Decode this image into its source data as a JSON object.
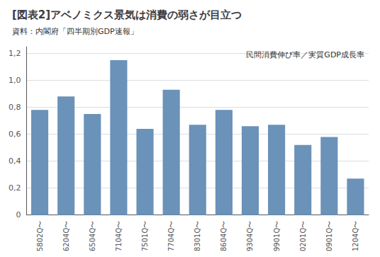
{
  "chart_data": {
    "type": "bar",
    "title": "[図表2]アベノミクス景気は消費の弱さが目立つ",
    "subtitle": "資料：内閣府「四半期別GDP速報」",
    "annotation": "民間消費伸び率／実質GDP成長率",
    "categories": [
      "5802Q〜",
      "6204Q〜",
      "6504Q〜",
      "7104Q〜",
      "7501Q〜",
      "7704Q〜",
      "8301Q〜",
      "8604Q〜",
      "9304Q〜",
      "9901Q〜",
      "0201Q〜",
      "0901Q〜",
      "1204Q〜"
    ],
    "values": [
      0.78,
      0.88,
      0.75,
      1.15,
      0.64,
      0.93,
      0.67,
      0.78,
      0.66,
      0.67,
      0.52,
      0.58,
      0.27
    ],
    "color": "#6b92b8",
    "ylim": [
      0,
      1.25
    ],
    "yticks": [
      0,
      {
        "value": 0.2,
        "label": "0,2"
      },
      {
        "value": 0.4,
        "label": "0,4"
      },
      {
        "value": 0.6,
        "label": "0,6"
      },
      {
        "value": 0.8,
        "label": "0,8"
      },
      {
        "value": 1.0,
        "label": "1,0"
      },
      {
        "value": 1.2,
        "label": "1,2"
      }
    ],
    "grid": true
  }
}
